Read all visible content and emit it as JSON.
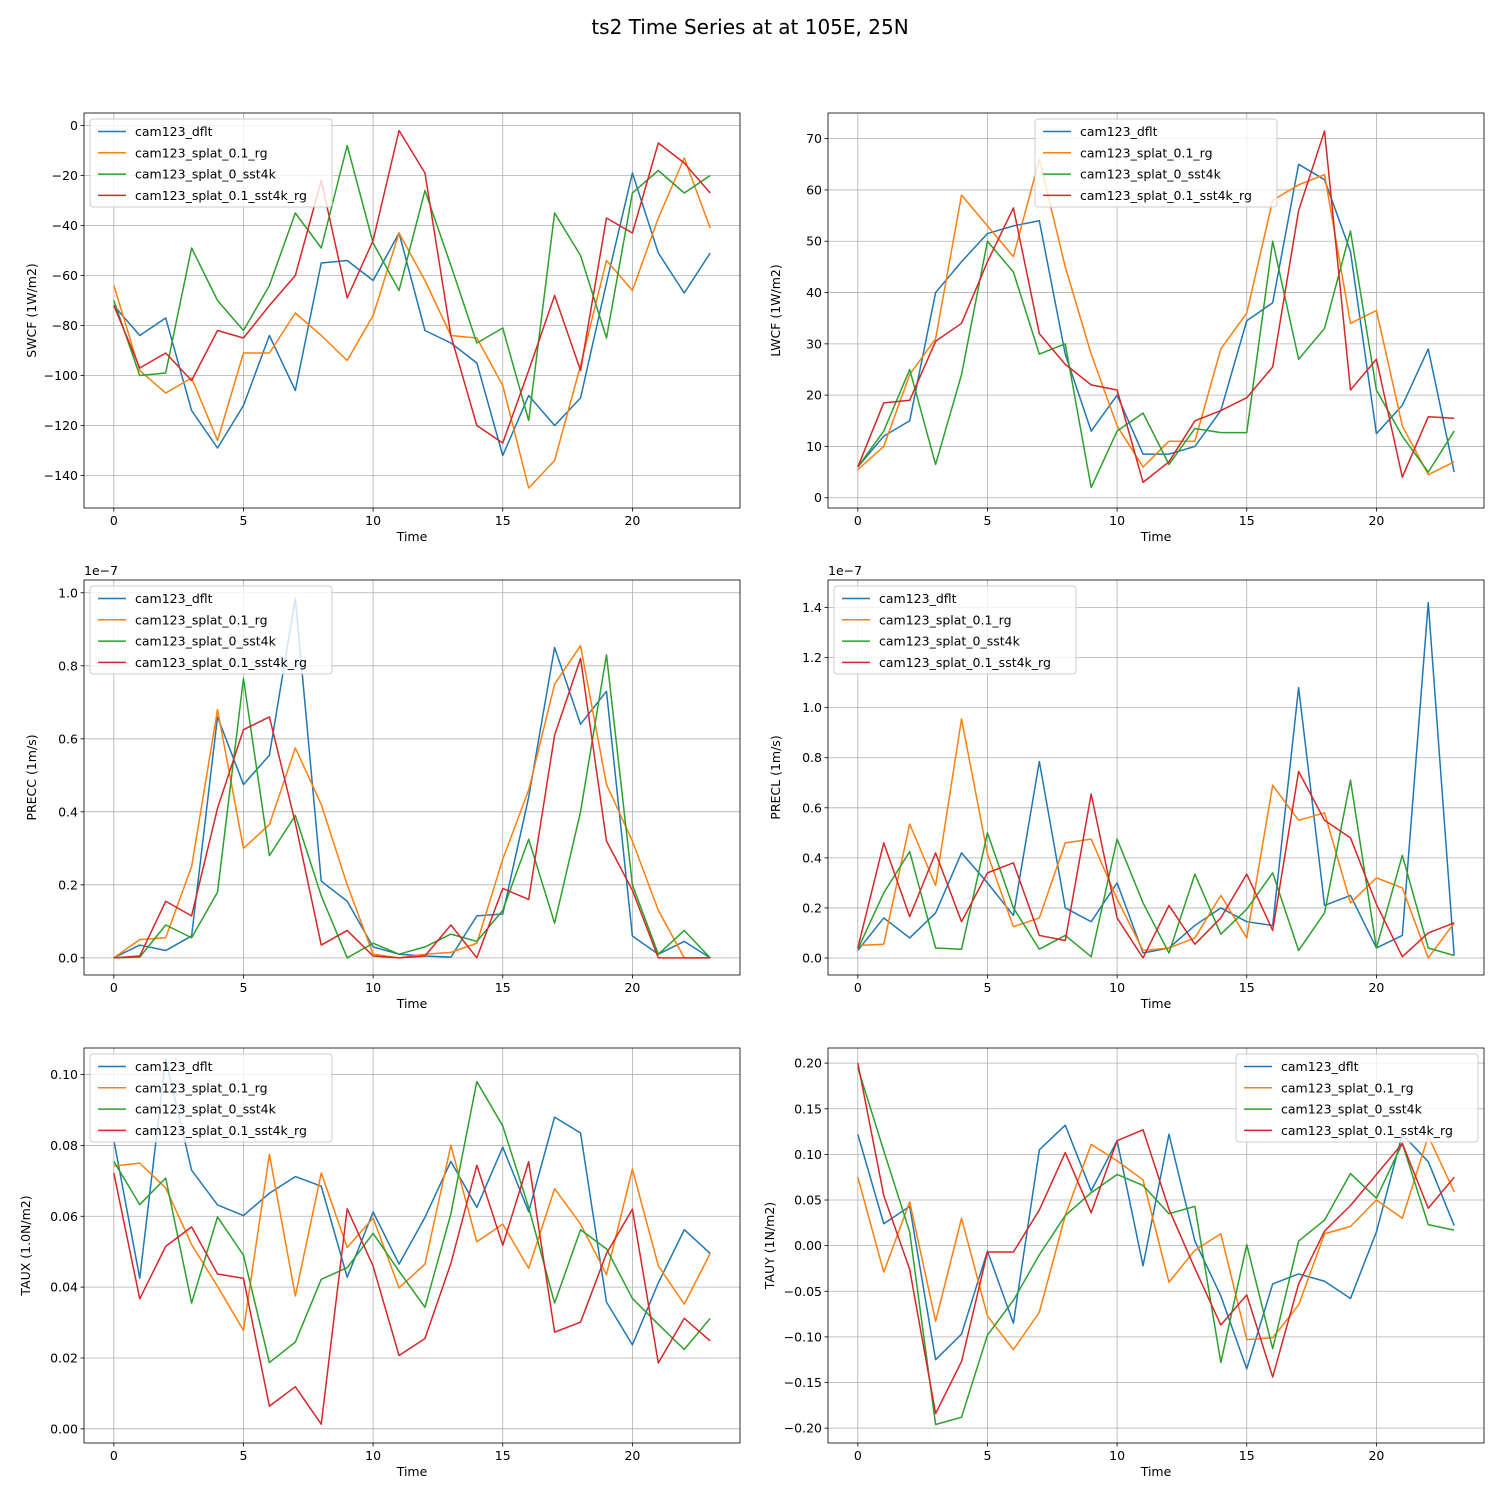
{
  "figure_title": "ts2 Time Series at at 105E, 25N",
  "colors": {
    "cam123_dflt": "#1f77b4",
    "cam123_splat_0.1_rg": "#ff7f0e",
    "cam123_splat_0_sst4k": "#2ca02c",
    "cam123_splat_0.1_sst4k_rg": "#d62728"
  },
  "chart_data": [
    {
      "type": "line",
      "title": "",
      "xlabel": "Time",
      "ylabel": "SWCF (1W/m2)",
      "xlim": [
        -1.15,
        24.15
      ],
      "ylim": [
        -153,
        5
      ],
      "xticks": [
        0,
        5,
        10,
        15,
        20
      ],
      "yticks": [
        0,
        -20,
        -40,
        -60,
        -80,
        -100,
        -120,
        -140
      ],
      "ytick_labels": [
        "0",
        "−20",
        "−40",
        "−60",
        "−80",
        "−100",
        "−120",
        "−140"
      ],
      "offset_label": "",
      "legend_position": "upper-left",
      "x": [
        0,
        1,
        2,
        3,
        4,
        5,
        6,
        7,
        8,
        9,
        10,
        11,
        12,
        13,
        14,
        15,
        16,
        17,
        18,
        19,
        20,
        21,
        22,
        23
      ],
      "series": [
        {
          "name": "cam123_dflt",
          "color": "#1f77b4",
          "values": [
            -72,
            -84,
            -77,
            -114,
            -129,
            -112,
            -84,
            -106,
            -55,
            -54,
            -62,
            -43,
            -82,
            -87,
            -95,
            -132,
            -108,
            -120,
            -109,
            -63,
            -19,
            -51,
            -67,
            -51
          ]
        },
        {
          "name": "cam123_splat_0.1_rg",
          "color": "#ff7f0e",
          "values": [
            -64,
            -98,
            -107,
            -101,
            -126,
            -91,
            -91,
            -75,
            -84,
            -94,
            -76,
            -43,
            -62,
            -84,
            -85,
            -104,
            -145,
            -134,
            -96,
            -54,
            -66,
            -37,
            -13,
            -41
          ]
        },
        {
          "name": "cam123_splat_0_sst4k",
          "color": "#2ca02c",
          "values": [
            -70,
            -100,
            -99,
            -49,
            -70,
            -82,
            -64,
            -35,
            -49,
            -8,
            -47,
            -66,
            -26,
            -56,
            -87,
            -81,
            -118,
            -35,
            -52,
            -85,
            -27,
            -18,
            -27,
            -20
          ]
        },
        {
          "name": "cam123_splat_0.1_sst4k_rg",
          "color": "#d62728",
          "values": [
            -72,
            -97,
            -91,
            -102,
            -82,
            -85,
            -72,
            -60,
            -22,
            -69,
            -46,
            -2,
            -19,
            -84,
            -120,
            -127,
            -98,
            -68,
            -98,
            -37,
            -43,
            -7,
            -15,
            -27
          ]
        }
      ]
    },
    {
      "type": "line",
      "title": "",
      "xlabel": "Time",
      "ylabel": "LWCF (1W/m2)",
      "xlim": [
        -1.15,
        24.15
      ],
      "ylim": [
        -2,
        75
      ],
      "xticks": [
        0,
        5,
        10,
        15,
        20
      ],
      "yticks": [
        0,
        10,
        20,
        30,
        40,
        50,
        60,
        70
      ],
      "ytick_labels": [
        "0",
        "10",
        "20",
        "30",
        "40",
        "50",
        "60",
        "70"
      ],
      "offset_label": "",
      "legend_position": "upper-center",
      "x": [
        0,
        1,
        2,
        3,
        4,
        5,
        6,
        7,
        8,
        9,
        10,
        11,
        12,
        13,
        14,
        15,
        16,
        17,
        18,
        19,
        20,
        21,
        22,
        23
      ],
      "series": [
        {
          "name": "cam123_dflt",
          "color": "#1f77b4",
          "values": [
            6,
            12,
            15,
            40,
            46,
            51.5,
            53,
            54,
            28,
            13,
            20,
            8.5,
            8.5,
            10,
            17,
            34.5,
            38,
            65,
            62,
            48,
            12.5,
            18,
            29,
            5
          ]
        },
        {
          "name": "cam123_splat_0.1_rg",
          "color": "#ff7f0e",
          "values": [
            5.5,
            10,
            24,
            31,
            59,
            53,
            47,
            66,
            45,
            28,
            14,
            6,
            11,
            11,
            29,
            36,
            58,
            61,
            63,
            34,
            36.5,
            14,
            4.5,
            7
          ]
        },
        {
          "name": "cam123_splat_0_sst4k",
          "color": "#2ca02c",
          "values": [
            6,
            13,
            25,
            6.5,
            24,
            50,
            44,
            28,
            30,
            2,
            13,
            16.5,
            6.5,
            13.5,
            12.7,
            12.7,
            50,
            27,
            33,
            52,
            21,
            12,
            5,
            13
          ]
        },
        {
          "name": "cam123_splat_0.1_sst4k_rg",
          "color": "#d62728",
          "values": [
            6,
            18.5,
            19,
            30.5,
            34,
            46,
            56.5,
            32,
            26,
            22,
            21,
            3,
            7,
            15,
            17,
            19.5,
            25.5,
            56,
            71.5,
            21,
            27,
            4,
            15.8,
            15.5
          ]
        }
      ]
    },
    {
      "type": "line",
      "title": "",
      "xlabel": "Time",
      "ylabel": "PRECC (1m/s)",
      "xlim": [
        -1.15,
        24.15
      ],
      "ylim": [
        -0.047,
        1.035
      ],
      "xticks": [
        0,
        5,
        10,
        15,
        20
      ],
      "yticks": [
        0,
        0.2,
        0.4,
        0.6,
        0.8,
        1.0
      ],
      "ytick_labels": [
        "0.0",
        "0.2",
        "0.4",
        "0.6",
        "0.8",
        "1.0"
      ],
      "offset_label": "1e−7",
      "legend_position": "upper-left",
      "x": [
        0,
        1,
        2,
        3,
        4,
        5,
        6,
        7,
        8,
        9,
        10,
        11,
        12,
        13,
        14,
        15,
        16,
        17,
        18,
        19,
        20,
        21,
        22,
        23
      ],
      "series": [
        {
          "name": "cam123_dflt",
          "color": "#1f77b4",
          "values": [
            0,
            0.035,
            0.02,
            0.06,
            0.66,
            0.475,
            0.555,
            0.985,
            0.21,
            0.155,
            0.03,
            0.01,
            0.005,
            0.002,
            0.115,
            0.12,
            0.44,
            0.85,
            0.64,
            0.73,
            0.06,
            0.01,
            0.045,
            0
          ]
        },
        {
          "name": "cam123_splat_0.1_rg",
          "color": "#ff7f0e",
          "values": [
            0,
            0.05,
            0.055,
            0.25,
            0.68,
            0.3,
            0.365,
            0.575,
            0.42,
            0.2,
            0.01,
            0,
            0.01,
            0.015,
            0.04,
            0.27,
            0.46,
            0.75,
            0.855,
            0.475,
            0.32,
            0.13,
            0,
            0
          ]
        },
        {
          "name": "cam123_splat_0_sst4k",
          "color": "#2ca02c",
          "values": [
            0,
            0.002,
            0.09,
            0.055,
            0.18,
            0.765,
            0.28,
            0.39,
            0.17,
            0,
            0.04,
            0.01,
            0.03,
            0.065,
            0.045,
            0.13,
            0.325,
            0.095,
            0.4,
            0.83,
            0.2,
            0.01,
            0.075,
            0
          ]
        },
        {
          "name": "cam123_splat_0.1_sst4k_rg",
          "color": "#d62728",
          "values": [
            0,
            0.005,
            0.155,
            0.115,
            0.41,
            0.625,
            0.66,
            0.37,
            0.035,
            0.075,
            0.005,
            0,
            0.005,
            0.09,
            0,
            0.19,
            0.16,
            0.61,
            0.82,
            0.32,
            0.185,
            0,
            0,
            0
          ]
        }
      ]
    },
    {
      "type": "line",
      "title": "",
      "xlabel": "Time",
      "ylabel": "PRECL (1m/s)",
      "xlim": [
        -1.15,
        24.15
      ],
      "ylim": [
        -0.068,
        1.51
      ],
      "xticks": [
        0,
        5,
        10,
        15,
        20
      ],
      "yticks": [
        0,
        0.2,
        0.4,
        0.6,
        0.8,
        1.0,
        1.2,
        1.4
      ],
      "ytick_labels": [
        "0.0",
        "0.2",
        "0.4",
        "0.6",
        "0.8",
        "1.0",
        "1.2",
        "1.4"
      ],
      "offset_label": "1e−7",
      "legend_position": "upper-left",
      "x": [
        0,
        1,
        2,
        3,
        4,
        5,
        6,
        7,
        8,
        9,
        10,
        11,
        12,
        13,
        14,
        15,
        16,
        17,
        18,
        19,
        20,
        21,
        22,
        23
      ],
      "series": [
        {
          "name": "cam123_dflt",
          "color": "#1f77b4",
          "values": [
            0.03,
            0.16,
            0.08,
            0.18,
            0.42,
            0.3,
            0.17,
            0.785,
            0.2,
            0.145,
            0.3,
            0.02,
            0.04,
            0.13,
            0.2,
            0.145,
            0.13,
            1.08,
            0.21,
            0.25,
            0.04,
            0.09,
            1.42,
            0.01
          ]
        },
        {
          "name": "cam123_splat_0.1_rg",
          "color": "#ff7f0e",
          "values": [
            0.05,
            0.055,
            0.535,
            0.29,
            0.955,
            0.415,
            0.125,
            0.16,
            0.46,
            0.475,
            0.235,
            0.03,
            0.04,
            0.08,
            0.25,
            0.08,
            0.69,
            0.55,
            0.58,
            0.22,
            0.32,
            0.28,
            0,
            0.14
          ]
        },
        {
          "name": "cam123_splat_0_sst4k",
          "color": "#2ca02c",
          "values": [
            0.035,
            0.26,
            0.425,
            0.04,
            0.035,
            0.5,
            0.2,
            0.035,
            0.09,
            0.005,
            0.475,
            0.22,
            0.02,
            0.335,
            0.095,
            0.195,
            0.34,
            0.03,
            0.18,
            0.71,
            0.04,
            0.41,
            0.04,
            0.01
          ]
        },
        {
          "name": "cam123_splat_0.1_sst4k_rg",
          "color": "#d62728",
          "values": [
            0.04,
            0.46,
            0.165,
            0.42,
            0.145,
            0.34,
            0.38,
            0.09,
            0.07,
            0.655,
            0.16,
            0,
            0.21,
            0.055,
            0.16,
            0.335,
            0.11,
            0.745,
            0.55,
            0.48,
            0.215,
            0.005,
            0.1,
            0.14
          ]
        }
      ]
    },
    {
      "type": "line",
      "title": "",
      "xlabel": "Time",
      "ylabel": "TAUX (1.0N/m2)",
      "xlim": [
        -1.15,
        24.15
      ],
      "ylim": [
        -0.004,
        0.1075
      ],
      "xticks": [
        0,
        5,
        10,
        15,
        20
      ],
      "yticks": [
        0,
        0.02,
        0.04,
        0.06,
        0.08,
        0.1
      ],
      "ytick_labels": [
        "0.00",
        "0.02",
        "0.04",
        "0.06",
        "0.08",
        "0.10"
      ],
      "offset_label": "",
      "legend_position": "upper-left",
      "x": [
        0,
        1,
        2,
        3,
        4,
        5,
        6,
        7,
        8,
        9,
        10,
        11,
        12,
        13,
        14,
        15,
        16,
        17,
        18,
        19,
        20,
        21,
        22,
        23
      ],
      "series": [
        {
          "name": "cam123_dflt",
          "color": "#1f77b4",
          "values": [
            0.0815,
            0.0425,
            0.1045,
            0.073,
            0.0632,
            0.0602,
            0.0665,
            0.0712,
            0.0685,
            0.0428,
            0.0612,
            0.0465,
            0.0597,
            0.0755,
            0.0625,
            0.0795,
            0.0613,
            0.088,
            0.0835,
            0.0358,
            0.0237,
            0.0412,
            0.0562,
            0.0495
          ]
        },
        {
          "name": "cam123_splat_0.1_rg",
          "color": "#ff7f0e",
          "values": [
            0.0742,
            0.075,
            0.068,
            0.052,
            0.0402,
            0.0278,
            0.0775,
            0.0375,
            0.0722,
            0.0512,
            0.0595,
            0.0398,
            0.0465,
            0.08,
            0.0528,
            0.0578,
            0.0453,
            0.0678,
            0.0578,
            0.0435,
            0.0733,
            0.046,
            0.0352,
            0.0495
          ]
        },
        {
          "name": "cam123_splat_0_sst4k",
          "color": "#2ca02c",
          "values": [
            0.0755,
            0.0633,
            0.0708,
            0.0355,
            0.0598,
            0.049,
            0.0187,
            0.0245,
            0.0422,
            0.0455,
            0.0552,
            0.0445,
            0.0343,
            0.0607,
            0.098,
            0.0855,
            0.0625,
            0.0355,
            0.0562,
            0.0508,
            0.0368,
            0.0295,
            0.0224,
            0.0312
          ]
        },
        {
          "name": "cam123_splat_0.1_sst4k_rg",
          "color": "#d62728",
          "values": [
            0.0722,
            0.0367,
            0.0515,
            0.057,
            0.0437,
            0.0425,
            0.0064,
            0.0119,
            0.0013,
            0.0621,
            0.0459,
            0.0207,
            0.0255,
            0.0467,
            0.0744,
            0.0518,
            0.0754,
            0.0273,
            0.0301,
            0.0495,
            0.062,
            0.0186,
            0.0312,
            0.0248
          ]
        }
      ]
    },
    {
      "type": "line",
      "title": "",
      "xlabel": "Time",
      "ylabel": "TAUY (1N/m2)",
      "xlim": [
        -1.15,
        24.15
      ],
      "ylim": [
        -0.2163,
        0.2166
      ],
      "xticks": [
        0,
        5,
        10,
        15,
        20
      ],
      "yticks": [
        -0.2,
        -0.15,
        -0.1,
        -0.05,
        0,
        0.05,
        0.1,
        0.15,
        0.2
      ],
      "ytick_labels": [
        "−0.20",
        "−0.15",
        "−0.10",
        "−0.05",
        "0.00",
        "0.05",
        "0.10",
        "0.15",
        "0.20"
      ],
      "offset_label": "",
      "legend_position": "upper-right",
      "x": [
        0,
        1,
        2,
        3,
        4,
        5,
        6,
        7,
        8,
        9,
        10,
        11,
        12,
        13,
        14,
        15,
        16,
        17,
        18,
        19,
        20,
        21,
        22,
        23
      ],
      "series": [
        {
          "name": "cam123_dflt",
          "color": "#1f77b4",
          "values": [
            0.122,
            0.024,
            0.043,
            -0.125,
            -0.097,
            -0.006,
            -0.085,
            0.105,
            0.132,
            0.06,
            0.115,
            -0.022,
            0.122,
            0.005,
            -0.055,
            -0.135,
            -0.042,
            -0.031,
            -0.039,
            -0.058,
            0.015,
            0.122,
            0.092,
            0.022
          ]
        },
        {
          "name": "cam123_splat_0.1_rg",
          "color": "#ff7f0e",
          "values": [
            0.075,
            -0.029,
            0.048,
            -0.083,
            0.03,
            -0.077,
            -0.114,
            -0.073,
            0.033,
            0.111,
            0.093,
            0.072,
            -0.04,
            -0.005,
            0.013,
            -0.103,
            -0.101,
            -0.065,
            0.013,
            0.021,
            0.05,
            0.03,
            0.12,
            0.059
          ]
        },
        {
          "name": "cam123_splat_0_sst4k",
          "color": "#2ca02c",
          "values": [
            0.195,
            0.104,
            0.015,
            -0.196,
            -0.188,
            -0.098,
            -0.06,
            -0.01,
            0.033,
            0.058,
            0.078,
            0.066,
            0.035,
            0.043,
            -0.128,
            0.001,
            -0.113,
            0.005,
            0.028,
            0.079,
            0.052,
            0.112,
            0.023,
            0.017
          ]
        },
        {
          "name": "cam123_splat_0.1_sst4k_rg",
          "color": "#d62728",
          "values": [
            0.2,
            0.055,
            -0.026,
            -0.184,
            -0.127,
            -0.007,
            -0.007,
            0.039,
            0.102,
            0.036,
            0.115,
            0.127,
            0.04,
            -0.025,
            -0.087,
            -0.054,
            -0.144,
            -0.042,
            0.016,
            0.044,
            0.078,
            0.112,
            0.041,
            0.075
          ]
        }
      ]
    }
  ]
}
